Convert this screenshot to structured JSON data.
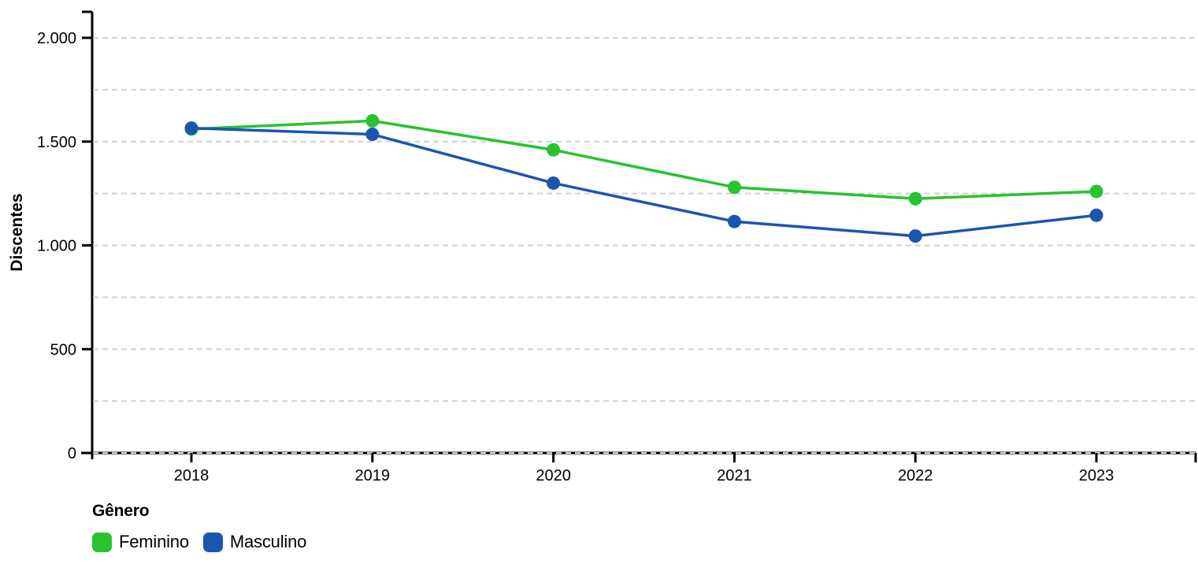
{
  "chart": {
    "y_axis_label": "Discentes",
    "legend": {
      "title": "Gênero",
      "items": [
        {
          "label": "Feminino",
          "color": "#28c32f"
        },
        {
          "label": "Masculino",
          "color": "#1a56b0"
        }
      ]
    },
    "colors": {
      "axis": "#000000",
      "gridline": "#d2d2d2",
      "tick_text": "#000000"
    }
  },
  "chart_data": {
    "type": "line",
    "title": "",
    "xlabel": "",
    "ylabel": "Discentes",
    "x": [
      2018,
      2019,
      2020,
      2021,
      2022,
      2023
    ],
    "x_tick_labels": [
      "2018",
      "2019",
      "2020",
      "2021",
      "2022",
      "2023"
    ],
    "series": [
      {
        "name": "Feminino",
        "color": "#28c32f",
        "values": [
          1560,
          1600,
          1460,
          1280,
          1225,
          1260
        ]
      },
      {
        "name": "Masculino",
        "color": "#1a56b0",
        "values": [
          1565,
          1535,
          1300,
          1115,
          1045,
          1145
        ]
      }
    ],
    "ylim": [
      0,
      2125
    ],
    "y_ticks": [
      0,
      500,
      1000,
      1500,
      2000
    ],
    "y_tick_labels": [
      "0",
      "500",
      "1.000",
      "1.500",
      "2.000"
    ],
    "grid_interval": 250,
    "grid": "horizontal-dashed",
    "legend_position": "bottom-left",
    "legend_title": "Gênero",
    "marker": "circle",
    "number_format": "pt-BR"
  }
}
